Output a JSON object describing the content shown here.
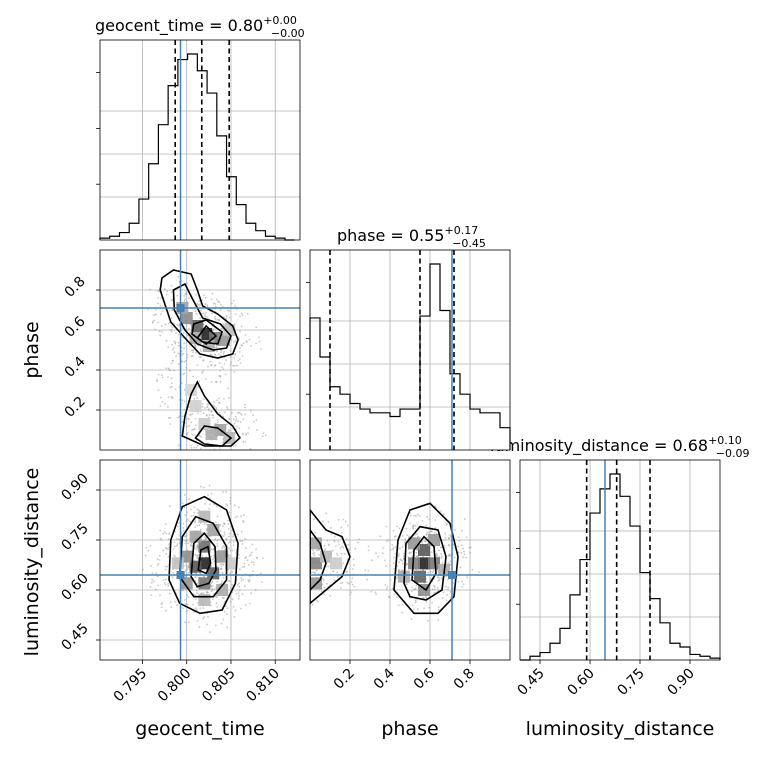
{
  "chart_data": {
    "type": "corner",
    "parameters": [
      "geocent_time",
      "phase",
      "luminosity_distance"
    ],
    "axis_labels": [
      "geocent_time",
      "phase",
      "luminosity_distance"
    ],
    "ranges": {
      "geocent_time": [
        0.7902,
        0.8128
      ],
      "phase": [
        0.0,
        1.0
      ],
      "luminosity_distance": [
        0.39,
        0.99
      ]
    },
    "ticks": {
      "geocent_time": [
        0.795,
        0.8,
        0.805,
        0.81
      ],
      "phase": [
        0.2,
        0.4,
        0.6,
        0.8
      ],
      "luminosity_distance": [
        0.45,
        0.6,
        0.75,
        0.9
      ]
    },
    "tick_labels": {
      "geocent_time": [
        "0.795",
        "0.800",
        "0.805",
        "0.810"
      ],
      "phase": [
        "0.2",
        "0.4",
        "0.6",
        "0.8"
      ],
      "luminosity_distance": [
        "0.45",
        "0.60",
        "0.75",
        "0.90"
      ]
    },
    "titles": [
      {
        "param": "geocent_time",
        "name": "geocent_time",
        "median": "0.80",
        "plus": "+0.00",
        "minus": "−0.00"
      },
      {
        "param": "phase",
        "name": "phase",
        "median": "0.55",
        "plus": "+0.17",
        "minus": "−0.45"
      },
      {
        "param": "luminosity_distance",
        "name": "luminosity_distance",
        "median": "0.68",
        "plus": "+0.10",
        "minus": "−0.09"
      }
    ],
    "quantiles": {
      "geocent_time": [
        0.7987,
        0.8017,
        0.8048
      ],
      "phase": [
        0.1,
        0.55,
        0.72
      ],
      "luminosity_distance": [
        0.59,
        0.68,
        0.78
      ]
    },
    "truths": {
      "geocent_time": 0.7993,
      "phase": 0.71,
      "luminosity_distance": 0.645
    },
    "histograms": {
      "geocent_time": {
        "x0": 0.7902,
        "bin_width": 0.0011,
        "counts": [
          0.01,
          0.02,
          0.04,
          0.09,
          0.22,
          0.41,
          0.62,
          0.83,
          0.97,
          1.0,
          0.91,
          0.79,
          0.56,
          0.34,
          0.19,
          0.09,
          0.05,
          0.02,
          0.01,
          0.0
        ]
      },
      "phase": {
        "x0": 0.0,
        "bin_width": 0.05,
        "counts": [
          0.71,
          0.5,
          0.34,
          0.3,
          0.25,
          0.22,
          0.2,
          0.2,
          0.18,
          0.22,
          0.22,
          0.72,
          1.0,
          0.75,
          0.41,
          0.3,
          0.22,
          0.2,
          0.2,
          0.12
        ]
      },
      "luminosity_distance": {
        "x0": 0.39,
        "bin_width": 0.03,
        "counts": [
          0.0,
          0.02,
          0.04,
          0.09,
          0.17,
          0.35,
          0.54,
          0.79,
          0.92,
          1.0,
          0.88,
          0.72,
          0.47,
          0.33,
          0.2,
          0.09,
          0.07,
          0.03,
          0.02,
          0.01
        ]
      }
    },
    "pairs": [
      {
        "x": "geocent_time",
        "y": "phase",
        "density_cells": [
          [
            0.8022,
            0.58,
            1.0
          ],
          [
            0.8012,
            0.62,
            0.72
          ],
          [
            0.8032,
            0.56,
            0.62
          ],
          [
            0.8,
            0.66,
            0.52
          ],
          [
            0.8042,
            0.55,
            0.45
          ],
          [
            0.7995,
            0.71,
            0.4
          ],
          [
            0.8025,
            0.52,
            0.35
          ],
          [
            0.801,
            0.56,
            0.35
          ],
          [
            0.8048,
            0.6,
            0.25
          ],
          [
            0.8038,
            0.1,
            0.4
          ],
          [
            0.8028,
            0.08,
            0.35
          ],
          [
            0.8048,
            0.06,
            0.3
          ],
          [
            0.802,
            0.13,
            0.2
          ],
          [
            0.801,
            0.22,
            0.18
          ],
          [
            0.8005,
            0.3,
            0.15
          ]
        ],
        "contours": [
          [
            [
              0.7972,
              0.86
            ],
            [
              0.7985,
              0.9
            ],
            [
              0.8005,
              0.88
            ],
            [
              0.8012,
              0.8
            ],
            [
              0.8018,
              0.72
            ],
            [
              0.8035,
              0.68
            ],
            [
              0.8052,
              0.62
            ],
            [
              0.8058,
              0.55
            ],
            [
              0.8052,
              0.48
            ],
            [
              0.8035,
              0.46
            ],
            [
              0.8015,
              0.48
            ],
            [
              0.7998,
              0.56
            ],
            [
              0.7982,
              0.64
            ],
            [
              0.7976,
              0.72
            ],
            [
              0.797,
              0.8
            ]
          ],
          [
            [
              0.7985,
              0.8
            ],
            [
              0.7998,
              0.83
            ],
            [
              0.8006,
              0.76
            ],
            [
              0.8018,
              0.66
            ],
            [
              0.8038,
              0.63
            ],
            [
              0.805,
              0.57
            ],
            [
              0.8045,
              0.51
            ],
            [
              0.803,
              0.5
            ],
            [
              0.8012,
              0.53
            ],
            [
              0.7998,
              0.6
            ],
            [
              0.7986,
              0.7
            ]
          ],
          [
            [
              0.8008,
              0.63
            ],
            [
              0.8022,
              0.65
            ],
            [
              0.804,
              0.59
            ],
            [
              0.8035,
              0.53
            ],
            [
              0.8018,
              0.54
            ],
            [
              0.8006,
              0.58
            ]
          ],
          [
            [
              0.8012,
              0.56
            ],
            [
              0.8022,
              0.62
            ],
            [
              0.8033,
              0.57
            ],
            [
              0.8022,
              0.53
            ]
          ],
          [
            [
              0.7995,
              0.07
            ],
            [
              0.7998,
              0.17
            ],
            [
              0.8005,
              0.28
            ],
            [
              0.8012,
              0.34
            ],
            [
              0.802,
              0.27
            ],
            [
              0.8035,
              0.18
            ],
            [
              0.8052,
              0.12
            ],
            [
              0.806,
              0.06
            ],
            [
              0.805,
              0.02
            ],
            [
              0.802,
              0.02
            ]
          ],
          [
            [
              0.801,
              0.06
            ],
            [
              0.802,
              0.12
            ],
            [
              0.8035,
              0.11
            ],
            [
              0.805,
              0.06
            ],
            [
              0.804,
              0.02
            ],
            [
              0.802,
              0.03
            ]
          ]
        ]
      },
      {
        "x": "geocent_time",
        "y": "luminosity_distance",
        "density_cells": [
          [
            0.802,
            0.68,
            1.0
          ],
          [
            0.801,
            0.67,
            0.75
          ],
          [
            0.803,
            0.65,
            0.7
          ],
          [
            0.802,
            0.73,
            0.65
          ],
          [
            0.802,
            0.62,
            0.6
          ],
          [
            0.8,
            0.7,
            0.5
          ],
          [
            0.804,
            0.7,
            0.45
          ],
          [
            0.801,
            0.76,
            0.4
          ],
          [
            0.803,
            0.78,
            0.4
          ],
          [
            0.8,
            0.62,
            0.45
          ],
          [
            0.804,
            0.6,
            0.35
          ],
          [
            0.802,
            0.82,
            0.3
          ],
          [
            0.802,
            0.57,
            0.3
          ],
          [
            0.799,
            0.68,
            0.25
          ],
          [
            0.805,
            0.68,
            0.2
          ]
        ],
        "contours": [
          [
            [
              0.798,
              0.63
            ],
            [
              0.7982,
              0.75
            ],
            [
              0.7995,
              0.85
            ],
            [
              0.802,
              0.88
            ],
            [
              0.8045,
              0.84
            ],
            [
              0.8058,
              0.74
            ],
            [
              0.8055,
              0.62
            ],
            [
              0.804,
              0.54
            ],
            [
              0.8015,
              0.53
            ],
            [
              0.7992,
              0.56
            ]
          ],
          [
            [
              0.7992,
              0.64
            ],
            [
              0.7995,
              0.76
            ],
            [
              0.801,
              0.82
            ],
            [
              0.803,
              0.8
            ],
            [
              0.8045,
              0.73
            ],
            [
              0.8045,
              0.63
            ],
            [
              0.803,
              0.58
            ],
            [
              0.8008,
              0.58
            ]
          ],
          [
            [
              0.8005,
              0.64
            ],
            [
              0.8008,
              0.74
            ],
            [
              0.802,
              0.77
            ],
            [
              0.8032,
              0.73
            ],
            [
              0.8033,
              0.66
            ],
            [
              0.8025,
              0.62
            ],
            [
              0.8012,
              0.61
            ]
          ],
          [
            [
              0.8013,
              0.66
            ],
            [
              0.8016,
              0.72
            ],
            [
              0.8024,
              0.73
            ],
            [
              0.8027,
              0.68
            ],
            [
              0.8022,
              0.65
            ]
          ]
        ]
      },
      {
        "x": "phase",
        "y": "luminosity_distance",
        "density_cells": [
          [
            0.57,
            0.68,
            1.0
          ],
          [
            0.57,
            0.72,
            0.75
          ],
          [
            0.55,
            0.64,
            0.7
          ],
          [
            0.62,
            0.68,
            0.6
          ],
          [
            0.52,
            0.68,
            0.55
          ],
          [
            0.62,
            0.75,
            0.45
          ],
          [
            0.52,
            0.74,
            0.45
          ],
          [
            0.57,
            0.6,
            0.5
          ],
          [
            0.47,
            0.64,
            0.35
          ],
          [
            0.67,
            0.66,
            0.35
          ],
          [
            0.03,
            0.68,
            0.55
          ],
          [
            0.03,
            0.74,
            0.4
          ],
          [
            0.03,
            0.62,
            0.45
          ],
          [
            0.08,
            0.7,
            0.3
          ],
          [
            0.13,
            0.68,
            0.2
          ]
        ],
        "contours": [
          [
            [
              0.42,
              0.6
            ],
            [
              0.44,
              0.75
            ],
            [
              0.5,
              0.84
            ],
            [
              0.6,
              0.86
            ],
            [
              0.7,
              0.8
            ],
            [
              0.74,
              0.7
            ],
            [
              0.72,
              0.58
            ],
            [
              0.64,
              0.53
            ],
            [
              0.52,
              0.53
            ]
          ],
          [
            [
              0.47,
              0.62
            ],
            [
              0.48,
              0.74
            ],
            [
              0.55,
              0.79
            ],
            [
              0.64,
              0.78
            ],
            [
              0.68,
              0.7
            ],
            [
              0.66,
              0.6
            ],
            [
              0.58,
              0.57
            ],
            [
              0.5,
              0.58
            ]
          ],
          [
            [
              0.51,
              0.63
            ],
            [
              0.52,
              0.72
            ],
            [
              0.57,
              0.76
            ],
            [
              0.62,
              0.73
            ],
            [
              0.63,
              0.65
            ],
            [
              0.58,
              0.6
            ]
          ],
          [
            [
              0.0,
              0.84
            ],
            [
              0.08,
              0.78
            ],
            [
              0.16,
              0.76
            ],
            [
              0.2,
              0.7
            ],
            [
              0.16,
              0.64
            ],
            [
              0.08,
              0.6
            ],
            [
              0.0,
              0.56
            ]
          ],
          [
            [
              0.0,
              0.78
            ],
            [
              0.05,
              0.74
            ],
            [
              0.08,
              0.68
            ],
            [
              0.05,
              0.63
            ],
            [
              0.0,
              0.6
            ]
          ]
        ]
      }
    ]
  }
}
